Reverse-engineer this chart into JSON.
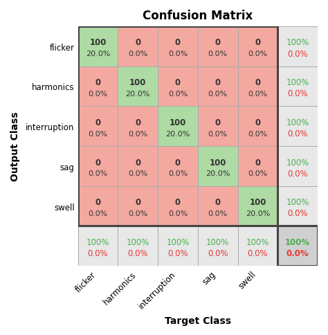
{
  "title": "Confusion Matrix",
  "xlabel": "Target Class",
  "ylabel": "Output Class",
  "classes": [
    "flicker",
    "harmonics",
    "interruption",
    "sag",
    "swell"
  ],
  "matrix": [
    [
      100,
      0,
      0,
      0,
      0
    ],
    [
      0,
      100,
      0,
      0,
      0
    ],
    [
      0,
      0,
      100,
      0,
      0
    ],
    [
      0,
      0,
      0,
      100,
      0
    ],
    [
      0,
      0,
      0,
      0,
      100
    ]
  ],
  "percentages": [
    [
      "20.0%",
      "0.0%",
      "0.0%",
      "0.0%",
      "0.0%"
    ],
    [
      "0.0%",
      "20.0%",
      "0.0%",
      "0.0%",
      "0.0%"
    ],
    [
      "0.0%",
      "0.0%",
      "20.0%",
      "0.0%",
      "0.0%"
    ],
    [
      "0.0%",
      "0.0%",
      "0.0%",
      "20.0%",
      "0.0%"
    ],
    [
      "0.0%",
      "0.0%",
      "0.0%",
      "0.0%",
      "20.0%"
    ]
  ],
  "col_summary_green": [
    "100%",
    "100%",
    "100%",
    "100%",
    "100%"
  ],
  "col_summary_red": [
    "0.0%",
    "0.0%",
    "0.0%",
    "0.0%",
    "0.0%"
  ],
  "row_summary_green": [
    "100%",
    "100%",
    "100%",
    "100%",
    "100%"
  ],
  "row_summary_red": [
    "0.0%",
    "0.0%",
    "0.0%",
    "0.0%",
    "0.0%"
  ],
  "corner_green": "100%",
  "corner_red": "0.0%",
  "color_diag": "#aedba4",
  "color_off": "#f4a9a0",
  "color_summary": "#e8e8e8",
  "color_corner": "#d0d0d0",
  "color_green_text": "#4caf50",
  "color_red_text": "#e53935",
  "color_dark_text": "#333333",
  "grid_color": "#aaaaaa",
  "title_fontsize": 12,
  "label_fontsize": 10,
  "cell_fontsize": 8.5,
  "summary_fontsize": 8.5,
  "tick_fontsize": 8.5
}
